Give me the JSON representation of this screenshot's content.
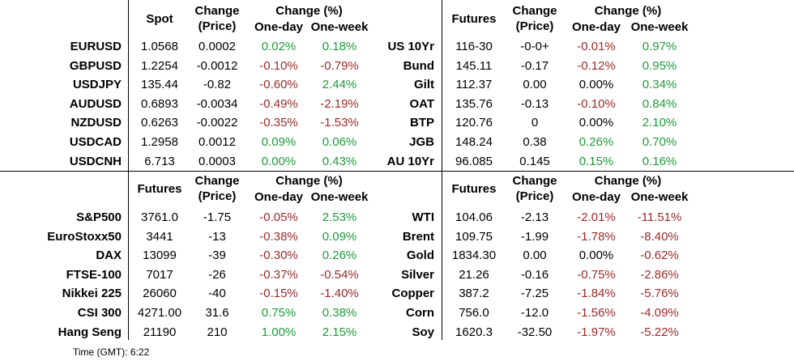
{
  "panels": [
    {
      "id": "fx",
      "headers": {
        "price": "Spot",
        "change_price": "Change\n(Price)",
        "change_pct": "Change (%)",
        "one_day": "One-day",
        "one_week": "One-week"
      },
      "rows": [
        {
          "label": "EURUSD",
          "price": "1.0568",
          "change": "0.0002",
          "one_day": "0.02%",
          "one_day_dir": "up",
          "one_week": "0.18%",
          "one_week_dir": "up"
        },
        {
          "label": "GBPUSD",
          "price": "1.2254",
          "change": "-0.0012",
          "one_day": "-0.10%",
          "one_day_dir": "down",
          "one_week": "-0.79%",
          "one_week_dir": "down"
        },
        {
          "label": "USDJPY",
          "price": "135.44",
          "change": "-0.82",
          "one_day": "-0.60%",
          "one_day_dir": "down",
          "one_week": "2.44%",
          "one_week_dir": "up"
        },
        {
          "label": "AUDUSD",
          "price": "0.6893",
          "change": "-0.0034",
          "one_day": "-0.49%",
          "one_day_dir": "down",
          "one_week": "-2.19%",
          "one_week_dir": "down"
        },
        {
          "label": "NZDUSD",
          "price": "0.6263",
          "change": "-0.0022",
          "one_day": "-0.35%",
          "one_day_dir": "down",
          "one_week": "-1.53%",
          "one_week_dir": "down"
        },
        {
          "label": "USDCAD",
          "price": "1.2958",
          "change": "0.0012",
          "one_day": "0.09%",
          "one_day_dir": "up",
          "one_week": "0.06%",
          "one_week_dir": "up"
        },
        {
          "label": "USDCNH",
          "price": "6.713",
          "change": "0.0003",
          "one_day": "0.00%",
          "one_day_dir": "up",
          "one_week": "0.43%",
          "one_week_dir": "up"
        }
      ]
    },
    {
      "id": "bonds",
      "headers": {
        "price": "Futures",
        "change_price": "Change\n(Price)",
        "change_pct": "Change (%)",
        "one_day": "One-day",
        "one_week": "One-week"
      },
      "rows": [
        {
          "label": "US 10Yr",
          "price": "116-30",
          "change": "-0-0+",
          "one_day": "-0.01%",
          "one_day_dir": "down",
          "one_week": "0.97%",
          "one_week_dir": "up"
        },
        {
          "label": "Bund",
          "price": "145.11",
          "change": "-0.17",
          "one_day": "-0.12%",
          "one_day_dir": "down",
          "one_week": "0.95%",
          "one_week_dir": "up"
        },
        {
          "label": "Gilt",
          "price": "112.37",
          "change": "0.00",
          "one_day": "0.00%",
          "one_day_dir": "flat",
          "one_week": "0.34%",
          "one_week_dir": "up"
        },
        {
          "label": "OAT",
          "price": "135.76",
          "change": "-0.13",
          "one_day": "-0.10%",
          "one_day_dir": "down",
          "one_week": "0.84%",
          "one_week_dir": "up"
        },
        {
          "label": "BTP",
          "price": "120.76",
          "change": "0",
          "one_day": "0.00%",
          "one_day_dir": "flat",
          "one_week": "2.10%",
          "one_week_dir": "up"
        },
        {
          "label": "JGB",
          "price": "148.24",
          "change": "0.38",
          "one_day": "0.26%",
          "one_day_dir": "up",
          "one_week": "0.70%",
          "one_week_dir": "up"
        },
        {
          "label": "AU 10Yr",
          "price": "96.085",
          "change": "0.145",
          "one_day": "0.15%",
          "one_day_dir": "up",
          "one_week": "0.16%",
          "one_week_dir": "up"
        }
      ]
    },
    {
      "id": "equities",
      "headers": {
        "price": "Futures",
        "change_price": "Change\n(Price)",
        "change_pct": "Change (%)",
        "one_day": "One-day",
        "one_week": "One-week"
      },
      "rows": [
        {
          "label": "S&P500",
          "price": "3761.0",
          "change": "-1.75",
          "one_day": "-0.05%",
          "one_day_dir": "down",
          "one_week": "2.53%",
          "one_week_dir": "up"
        },
        {
          "label": "EuroStoxx50",
          "price": "3441",
          "change": "-13",
          "one_day": "-0.38%",
          "one_day_dir": "down",
          "one_week": "0.09%",
          "one_week_dir": "up"
        },
        {
          "label": "DAX",
          "price": "13099",
          "change": "-39",
          "one_day": "-0.30%",
          "one_day_dir": "down",
          "one_week": "0.26%",
          "one_week_dir": "up"
        },
        {
          "label": "FTSE-100",
          "price": "7017",
          "change": "-26",
          "one_day": "-0.37%",
          "one_day_dir": "down",
          "one_week": "-0.54%",
          "one_week_dir": "down"
        },
        {
          "label": "Nikkei 225",
          "price": "26060",
          "change": "-40",
          "one_day": "-0.15%",
          "one_day_dir": "down",
          "one_week": "-1.40%",
          "one_week_dir": "down"
        },
        {
          "label": "CSI 300",
          "price": "4271.00",
          "change": "31.6",
          "one_day": "0.75%",
          "one_day_dir": "up",
          "one_week": "0.38%",
          "one_week_dir": "up"
        },
        {
          "label": "Hang Seng",
          "price": "21190",
          "change": "210",
          "one_day": "1.00%",
          "one_day_dir": "up",
          "one_week": "2.15%",
          "one_week_dir": "up"
        }
      ]
    },
    {
      "id": "commodities",
      "headers": {
        "price": "Futures",
        "change_price": "Change\n(Price)",
        "change_pct": "Change (%)",
        "one_day": "One-day",
        "one_week": "One-week"
      },
      "rows": [
        {
          "label": "WTI",
          "price": "104.06",
          "change": "-2.13",
          "one_day": "-2.01%",
          "one_day_dir": "down",
          "one_week": "-11.51%",
          "one_week_dir": "down"
        },
        {
          "label": "Brent",
          "price": "109.75",
          "change": "-1.99",
          "one_day": "-1.78%",
          "one_day_dir": "down",
          "one_week": "-8.40%",
          "one_week_dir": "down"
        },
        {
          "label": "Gold",
          "price": "1834.30",
          "change": "0.00",
          "one_day": "0.00%",
          "one_day_dir": "flat",
          "one_week": "-0.62%",
          "one_week_dir": "down"
        },
        {
          "label": "Silver",
          "price": "21.26",
          "change": "-0.16",
          "one_day": "-0.75%",
          "one_day_dir": "down",
          "one_week": "-2.86%",
          "one_week_dir": "down"
        },
        {
          "label": "Copper",
          "price": "387.2",
          "change": "-7.25",
          "one_day": "-1.84%",
          "one_day_dir": "down",
          "one_week": "-5.76%",
          "one_week_dir": "down"
        },
        {
          "label": "Corn",
          "price": "756.0",
          "change": "-12.0",
          "one_day": "-1.56%",
          "one_day_dir": "down",
          "one_week": "-4.09%",
          "one_week_dir": "down"
        },
        {
          "label": "Soy",
          "price": "1620.3",
          "change": "-32.50",
          "one_day": "-1.97%",
          "one_day_dir": "down",
          "one_week": "-5.22%",
          "one_week_dir": "down"
        }
      ]
    }
  ],
  "footer": {
    "label": "Time (GMT):",
    "time": "6:22"
  },
  "colors": {
    "up": "#1f9a3a",
    "down": "#9a2a2a",
    "flat": "#000000",
    "lines": "#000000"
  }
}
